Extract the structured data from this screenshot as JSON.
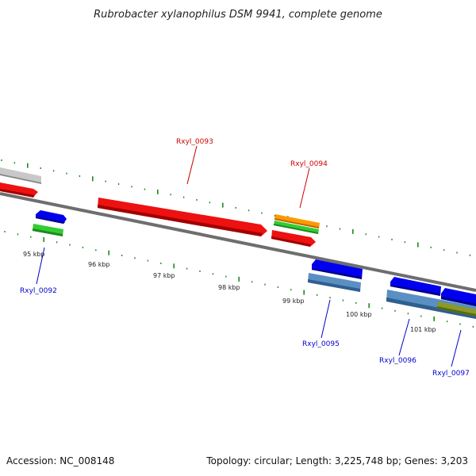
{
  "title": "Rubrobacter xylanophilus DSM 9941, complete genome",
  "footer": {
    "accession": "Accession: NC_008148",
    "topology": "Topology: circular; Length: 3,225,748 bp; Genes: 3,203"
  },
  "colors": {
    "backbone": "#777777",
    "tick": "#1a8a1a",
    "red": "#ee1111",
    "blue": "#0000ee",
    "green": "#33cc33",
    "orange": "#ff9900",
    "steelblue": "#5a8fc4",
    "olive": "#8a9a2a",
    "gray": "#c8c8c8",
    "label_red": "#cc0000",
    "label_blue": "#0000cc"
  },
  "gene_labels": [
    {
      "name": "Rxyl_0093",
      "color": "red"
    },
    {
      "name": "Rxyl_0094",
      "color": "red"
    },
    {
      "name": "Rxyl_0092",
      "color": "blue"
    },
    {
      "name": "Rxyl_0095",
      "color": "blue"
    },
    {
      "name": "Rxyl_0096",
      "color": "blue"
    },
    {
      "name": "Rxyl_0097",
      "color": "blue"
    }
  ],
  "scale_labels": [
    "95 kbp",
    "96 kbp",
    "97 kbp",
    "98 kbp",
    "99 kbp",
    "100 kbp",
    "101 kbp"
  ]
}
